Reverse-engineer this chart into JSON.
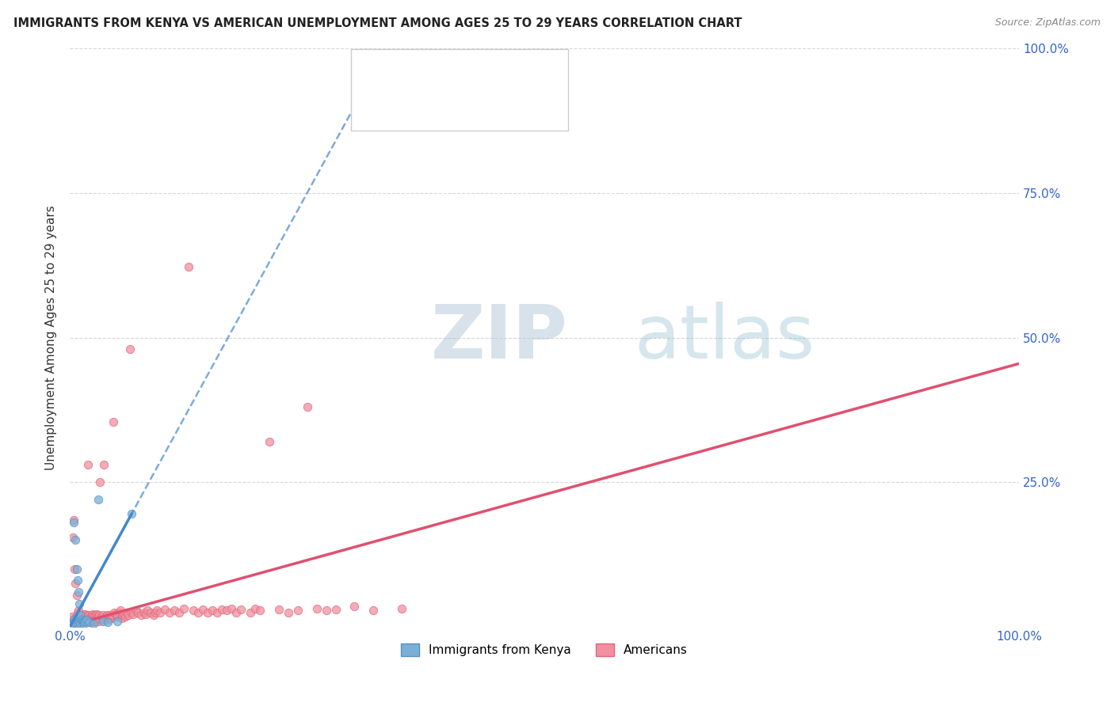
{
  "title": "IMMIGRANTS FROM KENYA VS AMERICAN UNEMPLOYMENT AMONG AGES 25 TO 29 YEARS CORRELATION CHART",
  "source": "Source: ZipAtlas.com",
  "ylabel": "Unemployment Among Ages 25 to 29 years",
  "xlim": [
    0.0,
    1.0
  ],
  "ylim": [
    0.0,
    1.0
  ],
  "watermark_text": "ZIPatlas",
  "watermark_color": "#ccdded",
  "kenya_color": "#7ab0d8",
  "kenya_edge_color": "#5a8fbf",
  "americans_color": "#f090a0",
  "americans_edge_color": "#e06878",
  "kenya_trendline_color": "#4488cc",
  "americans_trendline_color": "#e05070",
  "background_color": "#ffffff",
  "grid_color": "#d8d8d8",
  "title_color": "#222222",
  "source_color": "#888888",
  "axis_tick_color": "#3366cc",
  "ylabel_color": "#333333",
  "legend_r_kenya_color": "#3366cc",
  "legend_r_amer_color": "#e05070",
  "legend_n_kenya_color": "#3366cc",
  "legend_n_amer_color": "#e05070",
  "kenya_points": [
    [
      0.003,
      0.005
    ],
    [
      0.004,
      0.012
    ],
    [
      0.004,
      0.18
    ],
    [
      0.005,
      0.008
    ],
    [
      0.006,
      0.005
    ],
    [
      0.006,
      0.15
    ],
    [
      0.007,
      0.01
    ],
    [
      0.007,
      0.1
    ],
    [
      0.008,
      0.006
    ],
    [
      0.008,
      0.08
    ],
    [
      0.009,
      0.018
    ],
    [
      0.009,
      0.06
    ],
    [
      0.01,
      0.008
    ],
    [
      0.01,
      0.04
    ],
    [
      0.011,
      0.005
    ],
    [
      0.011,
      0.02
    ],
    [
      0.012,
      0.012
    ],
    [
      0.013,
      0.01
    ],
    [
      0.014,
      0.008
    ],
    [
      0.015,
      0.005
    ],
    [
      0.016,
      0.01
    ],
    [
      0.017,
      0.012
    ],
    [
      0.02,
      0.008
    ],
    [
      0.025,
      0.005
    ],
    [
      0.03,
      0.22
    ],
    [
      0.035,
      0.01
    ],
    [
      0.04,
      0.008
    ],
    [
      0.05,
      0.01
    ],
    [
      0.065,
      0.195
    ]
  ],
  "americans_points": [
    [
      0.002,
      0.018
    ],
    [
      0.003,
      0.155
    ],
    [
      0.004,
      0.185
    ],
    [
      0.005,
      0.1
    ],
    [
      0.005,
      0.015
    ],
    [
      0.005,
      0.008
    ],
    [
      0.006,
      0.075
    ],
    [
      0.006,
      0.012
    ],
    [
      0.007,
      0.055
    ],
    [
      0.007,
      0.018
    ],
    [
      0.008,
      0.008
    ],
    [
      0.008,
      0.025
    ],
    [
      0.009,
      0.01
    ],
    [
      0.009,
      0.028
    ],
    [
      0.01,
      0.012
    ],
    [
      0.01,
      0.015
    ],
    [
      0.011,
      0.02
    ],
    [
      0.011,
      0.008
    ],
    [
      0.012,
      0.01
    ],
    [
      0.012,
      0.015
    ],
    [
      0.013,
      0.008
    ],
    [
      0.013,
      0.012
    ],
    [
      0.014,
      0.01
    ],
    [
      0.014,
      0.02
    ],
    [
      0.015,
      0.008
    ],
    [
      0.015,
      0.018
    ],
    [
      0.016,
      0.012
    ],
    [
      0.016,
      0.022
    ],
    [
      0.017,
      0.015
    ],
    [
      0.017,
      0.01
    ],
    [
      0.018,
      0.02
    ],
    [
      0.018,
      0.015
    ],
    [
      0.019,
      0.012
    ],
    [
      0.019,
      0.28
    ],
    [
      0.02,
      0.01
    ],
    [
      0.02,
      0.02
    ],
    [
      0.021,
      0.015
    ],
    [
      0.021,
      0.008
    ],
    [
      0.022,
      0.018
    ],
    [
      0.022,
      0.012
    ],
    [
      0.023,
      0.02
    ],
    [
      0.023,
      0.015
    ],
    [
      0.024,
      0.01
    ],
    [
      0.024,
      0.022
    ],
    [
      0.025,
      0.008
    ],
    [
      0.025,
      0.018
    ],
    [
      0.026,
      0.015
    ],
    [
      0.026,
      0.012
    ],
    [
      0.027,
      0.02
    ],
    [
      0.027,
      0.01
    ],
    [
      0.028,
      0.015
    ],
    [
      0.028,
      0.022
    ],
    [
      0.029,
      0.018
    ],
    [
      0.03,
      0.01
    ],
    [
      0.03,
      0.015
    ],
    [
      0.031,
      0.02
    ],
    [
      0.032,
      0.25
    ],
    [
      0.033,
      0.018
    ],
    [
      0.034,
      0.015
    ],
    [
      0.035,
      0.012
    ],
    [
      0.035,
      0.02
    ],
    [
      0.036,
      0.28
    ],
    [
      0.037,
      0.015
    ],
    [
      0.038,
      0.018
    ],
    [
      0.039,
      0.02
    ],
    [
      0.04,
      0.015
    ],
    [
      0.04,
      0.012
    ],
    [
      0.042,
      0.02
    ],
    [
      0.043,
      0.018
    ],
    [
      0.044,
      0.015
    ],
    [
      0.045,
      0.02
    ],
    [
      0.046,
      0.355
    ],
    [
      0.047,
      0.025
    ],
    [
      0.048,
      0.022
    ],
    [
      0.05,
      0.018
    ],
    [
      0.05,
      0.02
    ],
    [
      0.052,
      0.025
    ],
    [
      0.053,
      0.028
    ],
    [
      0.055,
      0.02
    ],
    [
      0.055,
      0.015
    ],
    [
      0.057,
      0.022
    ],
    [
      0.058,
      0.018
    ],
    [
      0.06,
      0.025
    ],
    [
      0.062,
      0.02
    ],
    [
      0.063,
      0.48
    ],
    [
      0.065,
      0.025
    ],
    [
      0.067,
      0.022
    ],
    [
      0.07,
      0.028
    ],
    [
      0.072,
      0.025
    ],
    [
      0.075,
      0.02
    ],
    [
      0.078,
      0.025
    ],
    [
      0.08,
      0.022
    ],
    [
      0.082,
      0.028
    ],
    [
      0.085,
      0.025
    ],
    [
      0.088,
      0.02
    ],
    [
      0.09,
      0.025
    ],
    [
      0.092,
      0.028
    ],
    [
      0.095,
      0.025
    ],
    [
      0.1,
      0.03
    ],
    [
      0.105,
      0.025
    ],
    [
      0.11,
      0.028
    ],
    [
      0.115,
      0.025
    ],
    [
      0.12,
      0.032
    ],
    [
      0.125,
      0.622
    ],
    [
      0.13,
      0.028
    ],
    [
      0.135,
      0.025
    ],
    [
      0.14,
      0.03
    ],
    [
      0.145,
      0.025
    ],
    [
      0.15,
      0.028
    ],
    [
      0.155,
      0.025
    ],
    [
      0.16,
      0.03
    ],
    [
      0.165,
      0.028
    ],
    [
      0.17,
      0.032
    ],
    [
      0.175,
      0.025
    ],
    [
      0.18,
      0.03
    ],
    [
      0.19,
      0.025
    ],
    [
      0.195,
      0.032
    ],
    [
      0.2,
      0.028
    ],
    [
      0.21,
      0.32
    ],
    [
      0.22,
      0.03
    ],
    [
      0.23,
      0.025
    ],
    [
      0.24,
      0.028
    ],
    [
      0.25,
      0.38
    ],
    [
      0.26,
      0.032
    ],
    [
      0.27,
      0.028
    ],
    [
      0.28,
      0.03
    ],
    [
      0.3,
      0.035
    ],
    [
      0.32,
      0.028
    ],
    [
      0.35,
      0.032
    ]
  ]
}
